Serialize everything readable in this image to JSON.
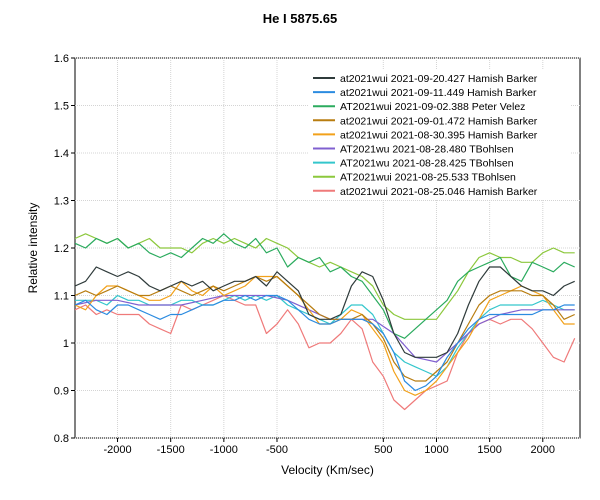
{
  "chart_data": {
    "type": "line",
    "title": "He I 5875.65",
    "xlabel": "Velocity (Km/sec)",
    "ylabel": "Relative intensity",
    "xlim": [
      -2400,
      2350
    ],
    "ylim": [
      0.8,
      1.6
    ],
    "xticks": [
      -2000,
      -1500,
      -1000,
      -500,
      500,
      1000,
      1500,
      2000
    ],
    "yticks": [
      0.8,
      0.9,
      1.0,
      1.1,
      1.2,
      1.3,
      1.4,
      1.5,
      1.6
    ],
    "ytick_labels": [
      "0.8",
      "0.9",
      "1",
      "1.1",
      "1.2",
      "1.3",
      "1.4",
      "1.5",
      "1.6"
    ],
    "grid": true,
    "legend_position": "top-right",
    "series": [
      {
        "name": "at2021wui  2021-09-20.427  Hamish Barker",
        "color": "#2f3b3b",
        "x": [
          -2400,
          -2300,
          -2200,
          -2100,
          -2000,
          -1900,
          -1800,
          -1700,
          -1600,
          -1500,
          -1400,
          -1300,
          -1200,
          -1100,
          -1000,
          -900,
          -800,
          -700,
          -600,
          -500,
          -400,
          -300,
          -200,
          -100,
          0,
          100,
          200,
          300,
          400,
          500,
          600,
          700,
          800,
          900,
          1000,
          1100,
          1200,
          1300,
          1400,
          1500,
          1600,
          1700,
          1800,
          1900,
          2000,
          2100,
          2200,
          2300
        ],
        "y": [
          1.12,
          1.13,
          1.16,
          1.15,
          1.14,
          1.15,
          1.14,
          1.12,
          1.11,
          1.12,
          1.13,
          1.12,
          1.13,
          1.11,
          1.12,
          1.13,
          1.13,
          1.14,
          1.12,
          1.15,
          1.13,
          1.11,
          1.06,
          1.05,
          1.05,
          1.06,
          1.12,
          1.15,
          1.14,
          1.09,
          1.02,
          0.98,
          0.97,
          0.97,
          0.97,
          0.98,
          1.02,
          1.08,
          1.13,
          1.16,
          1.16,
          1.14,
          1.12,
          1.11,
          1.11,
          1.1,
          1.12,
          1.13
        ]
      },
      {
        "name": "at2021wui  2021-09-11.449  Hamish Barker",
        "color": "#2b8be0",
        "x": [
          -2400,
          -2300,
          -2200,
          -2100,
          -2000,
          -1900,
          -1800,
          -1700,
          -1600,
          -1500,
          -1400,
          -1300,
          -1200,
          -1100,
          -1000,
          -900,
          -800,
          -700,
          -600,
          -500,
          -400,
          -300,
          -200,
          -100,
          0,
          100,
          200,
          300,
          400,
          500,
          600,
          700,
          800,
          900,
          1000,
          1100,
          1200,
          1300,
          1400,
          1500,
          1600,
          1700,
          1800,
          1900,
          2000,
          2100,
          2200,
          2300
        ],
        "y": [
          1.08,
          1.09,
          1.07,
          1.06,
          1.08,
          1.08,
          1.07,
          1.06,
          1.05,
          1.06,
          1.06,
          1.07,
          1.08,
          1.08,
          1.09,
          1.09,
          1.1,
          1.09,
          1.1,
          1.1,
          1.09,
          1.07,
          1.05,
          1.04,
          1.04,
          1.05,
          1.05,
          1.05,
          1.04,
          1.02,
          0.98,
          0.92,
          0.9,
          0.91,
          0.93,
          0.97,
          1.0,
          1.03,
          1.05,
          1.06,
          1.06,
          1.06,
          1.06,
          1.06,
          1.07,
          1.07,
          1.08,
          1.08
        ]
      },
      {
        "name": "AT2021wui  2021-09-02.388  Peter Velez",
        "color": "#2bab5e",
        "x": [
          -2400,
          -2300,
          -2200,
          -2100,
          -2000,
          -1900,
          -1800,
          -1700,
          -1600,
          -1500,
          -1400,
          -1300,
          -1200,
          -1100,
          -1000,
          -900,
          -800,
          -700,
          -600,
          -500,
          -400,
          -300,
          -200,
          -100,
          0,
          100,
          200,
          300,
          400,
          500,
          600,
          700,
          800,
          900,
          1000,
          1100,
          1200,
          1300,
          1400,
          1500,
          1600,
          1700,
          1800,
          1900,
          2000,
          2100,
          2200,
          2300
        ],
        "y": [
          1.21,
          1.2,
          1.22,
          1.21,
          1.22,
          1.2,
          1.21,
          1.19,
          1.18,
          1.19,
          1.18,
          1.2,
          1.22,
          1.21,
          1.23,
          1.21,
          1.2,
          1.22,
          1.19,
          1.2,
          1.16,
          1.18,
          1.17,
          1.18,
          1.15,
          1.16,
          1.14,
          1.13,
          1.1,
          1.07,
          1.02,
          1.01,
          1.03,
          1.05,
          1.07,
          1.09,
          1.13,
          1.15,
          1.16,
          1.17,
          1.18,
          1.14,
          1.13,
          1.17,
          1.16,
          1.15,
          1.17,
          1.16
        ]
      },
      {
        "name": "at2021wui  2021-09-01.472  Hamish Barker",
        "color": "#b87d10",
        "x": [
          -2400,
          -2300,
          -2200,
          -2100,
          -2000,
          -1900,
          -1800,
          -1700,
          -1600,
          -1500,
          -1400,
          -1300,
          -1200,
          -1100,
          -1000,
          -900,
          -800,
          -700,
          -600,
          -500,
          -400,
          -300,
          -200,
          -100,
          0,
          100,
          200,
          300,
          400,
          500,
          600,
          700,
          800,
          900,
          1000,
          1100,
          1200,
          1300,
          1400,
          1500,
          1600,
          1700,
          1800,
          1900,
          2000,
          2100,
          2200,
          2300
        ],
        "y": [
          1.1,
          1.11,
          1.1,
          1.11,
          1.12,
          1.11,
          1.1,
          1.1,
          1.11,
          1.12,
          1.11,
          1.1,
          1.11,
          1.12,
          1.11,
          1.12,
          1.13,
          1.14,
          1.13,
          1.14,
          1.12,
          1.1,
          1.08,
          1.06,
          1.05,
          1.05,
          1.05,
          1.06,
          1.04,
          1.01,
          0.96,
          0.93,
          0.92,
          0.92,
          0.94,
          0.96,
          1.0,
          1.04,
          1.08,
          1.1,
          1.11,
          1.11,
          1.11,
          1.1,
          1.1,
          1.08,
          1.05,
          1.06
        ]
      },
      {
        "name": "at2021wui  2021-08-30.395  Hamish Barker",
        "color": "#f2a11a",
        "x": [
          -2400,
          -2300,
          -2200,
          -2100,
          -2000,
          -1900,
          -1800,
          -1700,
          -1600,
          -1500,
          -1400,
          -1300,
          -1200,
          -1100,
          -1000,
          -900,
          -800,
          -700,
          -600,
          -500,
          -400,
          -300,
          -200,
          -100,
          0,
          100,
          200,
          300,
          400,
          500,
          600,
          700,
          800,
          900,
          1000,
          1100,
          1200,
          1300,
          1400,
          1500,
          1600,
          1700,
          1800,
          1900,
          2000,
          2100,
          2200,
          2300
        ],
        "y": [
          1.08,
          1.07,
          1.1,
          1.12,
          1.12,
          1.11,
          1.1,
          1.09,
          1.09,
          1.1,
          1.13,
          1.11,
          1.1,
          1.12,
          1.1,
          1.11,
          1.12,
          1.14,
          1.14,
          1.14,
          1.12,
          1.1,
          1.07,
          1.04,
          1.04,
          1.05,
          1.07,
          1.06,
          1.03,
          1.0,
          0.94,
          0.9,
          0.89,
          0.9,
          0.92,
          0.95,
          0.98,
          1.01,
          1.05,
          1.09,
          1.1,
          1.11,
          1.12,
          1.11,
          1.1,
          1.07,
          1.04,
          1.04
        ]
      },
      {
        "name": "AT2021wu  2021-08-28.480  TBohlsen",
        "color": "#8060d0",
        "x": [
          -2400,
          -2200,
          -2000,
          -1800,
          -1600,
          -1400,
          -1200,
          -1000,
          -800,
          -600,
          -400,
          -200,
          0,
          200,
          400,
          600,
          800,
          1000,
          1200,
          1400,
          1600,
          1800,
          2000,
          2200,
          2300
        ],
        "y": [
          1.08,
          1.09,
          1.09,
          1.08,
          1.08,
          1.08,
          1.09,
          1.1,
          1.1,
          1.1,
          1.09,
          1.07,
          1.05,
          1.05,
          1.05,
          1.02,
          0.97,
          0.96,
          1.0,
          1.04,
          1.06,
          1.07,
          1.07,
          1.07,
          1.07
        ]
      },
      {
        "name": "AT2021wu  2021-08-28.425  TBohlsen",
        "color": "#34c6cc",
        "x": [
          -2400,
          -2300,
          -2200,
          -2100,
          -2000,
          -1900,
          -1800,
          -1700,
          -1600,
          -1500,
          -1400,
          -1300,
          -1200,
          -1100,
          -1000,
          -900,
          -800,
          -700,
          -600,
          -500,
          -400,
          -300,
          -200,
          -100,
          0,
          100,
          200,
          300,
          400,
          500,
          600,
          700,
          800,
          900,
          1000,
          1100,
          1200,
          1300,
          1400,
          1500,
          1600,
          1700,
          1800,
          1900,
          2000,
          2100,
          2200,
          2300
        ],
        "y": [
          1.09,
          1.09,
          1.09,
          1.08,
          1.1,
          1.09,
          1.09,
          1.08,
          1.08,
          1.08,
          1.09,
          1.09,
          1.08,
          1.08,
          1.09,
          1.1,
          1.09,
          1.1,
          1.09,
          1.1,
          1.08,
          1.07,
          1.06,
          1.05,
          1.04,
          1.06,
          1.08,
          1.08,
          1.06,
          1.02,
          0.98,
          0.96,
          0.95,
          0.94,
          0.93,
          0.95,
          0.99,
          1.02,
          1.05,
          1.07,
          1.08,
          1.08,
          1.08,
          1.08,
          1.09,
          1.08,
          1.07,
          1.07
        ]
      },
      {
        "name": "AT2021wui  2021-08-25.533  TBohlsen",
        "color": "#8cc83c",
        "x": [
          -2400,
          -2300,
          -2200,
          -2100,
          -2000,
          -1900,
          -1800,
          -1700,
          -1600,
          -1500,
          -1400,
          -1300,
          -1200,
          -1100,
          -1000,
          -900,
          -800,
          -700,
          -600,
          -500,
          -400,
          -300,
          -200,
          -100,
          0,
          100,
          200,
          300,
          400,
          500,
          600,
          700,
          800,
          900,
          1000,
          1100,
          1200,
          1300,
          1400,
          1500,
          1600,
          1700,
          1800,
          1900,
          2000,
          2100,
          2200,
          2300
        ],
        "y": [
          1.22,
          1.23,
          1.22,
          1.21,
          1.22,
          1.2,
          1.21,
          1.22,
          1.2,
          1.2,
          1.2,
          1.19,
          1.21,
          1.22,
          1.21,
          1.22,
          1.21,
          1.2,
          1.22,
          1.21,
          1.2,
          1.18,
          1.17,
          1.16,
          1.17,
          1.16,
          1.15,
          1.14,
          1.12,
          1.08,
          1.06,
          1.05,
          1.05,
          1.05,
          1.05,
          1.08,
          1.11,
          1.15,
          1.18,
          1.19,
          1.18,
          1.18,
          1.17,
          1.17,
          1.19,
          1.2,
          1.19,
          1.19
        ]
      },
      {
        "name": "at2021wui  2021-08-25.046  Hamish Barker",
        "color": "#ef7a7a",
        "x": [
          -2400,
          -2300,
          -2200,
          -2100,
          -2000,
          -1900,
          -1800,
          -1700,
          -1600,
          -1500,
          -1400,
          -1300,
          -1200,
          -1100,
          -1000,
          -900,
          -800,
          -700,
          -600,
          -500,
          -400,
          -300,
          -200,
          -100,
          0,
          100,
          200,
          300,
          400,
          500,
          600,
          700,
          800,
          900,
          1000,
          1100,
          1200,
          1300,
          1400,
          1500,
          1600,
          1700,
          1800,
          1900,
          2000,
          2100,
          2200,
          2300
        ],
        "y": [
          1.07,
          1.08,
          1.06,
          1.07,
          1.06,
          1.06,
          1.06,
          1.04,
          1.03,
          1.02,
          1.08,
          1.07,
          1.08,
          1.09,
          1.1,
          1.09,
          1.08,
          1.08,
          1.02,
          1.04,
          1.07,
          1.04,
          0.99,
          1.0,
          1.0,
          1.02,
          1.05,
          1.03,
          0.96,
          0.93,
          0.88,
          0.86,
          0.88,
          0.9,
          0.91,
          0.92,
          0.98,
          1.02,
          1.04,
          1.05,
          1.04,
          1.05,
          1.05,
          1.03,
          1.0,
          0.97,
          0.96,
          1.01
        ]
      }
    ]
  }
}
